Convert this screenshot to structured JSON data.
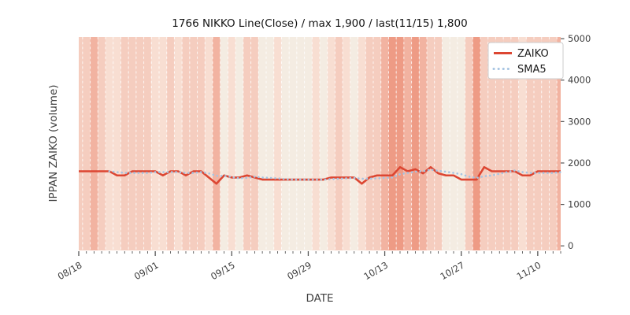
{
  "figure": {
    "title": "1766 NIKKO Line(Close) / max 1,900 / last(11/15) 1,800",
    "xlabel": "DATE",
    "ylabel": "IPPAN ZAIKO (volume)"
  },
  "legend": {
    "position": "upper right",
    "entries": [
      {
        "label": "ZAIKO",
        "style": "solid",
        "color": "#dc4632"
      },
      {
        "label": "SMA5",
        "style": "dotted",
        "color": "#a6c4e2"
      }
    ]
  },
  "colors": {
    "zaiko_line": "#dc4632",
    "sma5_line": "#a6c4e2",
    "grid_dash": "#ffffff",
    "tick_mark": "#555555",
    "tick_text": "#3f3f3f",
    "legend_border": "#cccccc",
    "heat_palette": [
      "#f4ece2",
      "#f8ded2",
      "#f5cdbf",
      "#f2b3a1",
      "#ee9b85"
    ]
  },
  "chart_data": {
    "type": "line",
    "title": "1766 NIKKO Line(Close) / max 1,900 / last(11/15) 1,800",
    "xlabel": "DATE",
    "ylabel": "IPPAN ZAIKO (volume)",
    "max_value": 1900,
    "last_point": {
      "date": "11/15",
      "value": 1800
    },
    "ylim": [
      -110,
      5040
    ],
    "yticks": [
      0,
      1000,
      2000,
      3000,
      4000,
      5000
    ],
    "xtick_positions": [
      0,
      10,
      20,
      30,
      40,
      50,
      60
    ],
    "xtick_labels": [
      "08/18",
      "09/01",
      "09/15",
      "09/29",
      "10/13",
      "10/27",
      "11/10"
    ],
    "grid": "vertical-white-dashed-per-day",
    "legend_position": "upper right",
    "series": [
      {
        "name": "ZAIKO",
        "values": [
          1800,
          1800,
          1800,
          1800,
          1800,
          1700,
          1700,
          1800,
          1800,
          1800,
          1800,
          1700,
          1800,
          1800,
          1700,
          1800,
          1800,
          1650,
          1500,
          1700,
          1650,
          1650,
          1700,
          1650,
          1600,
          1600,
          1600,
          1600,
          1600,
          1600,
          1600,
          1600,
          1600,
          1650,
          1650,
          1650,
          1650,
          1500,
          1650,
          1700,
          1700,
          1700,
          1900,
          1800,
          1850,
          1750,
          1900,
          1750,
          1700,
          1700,
          1600,
          1600,
          1600,
          1900,
          1800,
          1800,
          1800,
          1800,
          1700,
          1700,
          1800,
          1800,
          1800,
          1800
        ]
      },
      {
        "name": "SMA5",
        "derived_from": "ZAIKO",
        "window": 5
      }
    ],
    "background_heat_levels": [
      2,
      2,
      3,
      2,
      1,
      1,
      2,
      2,
      2,
      2,
      1,
      1,
      2,
      1,
      2,
      2,
      2,
      1,
      3,
      0,
      1,
      0,
      2,
      2,
      0,
      0,
      1,
      0,
      0,
      0,
      0,
      1,
      0,
      1,
      2,
      1,
      0,
      1,
      2,
      2,
      3,
      4,
      4,
      3,
      4,
      3,
      2,
      2,
      0,
      0,
      0,
      2,
      4,
      2,
      2,
      2,
      2,
      2,
      1,
      2,
      2,
      2,
      2,
      3
    ]
  }
}
